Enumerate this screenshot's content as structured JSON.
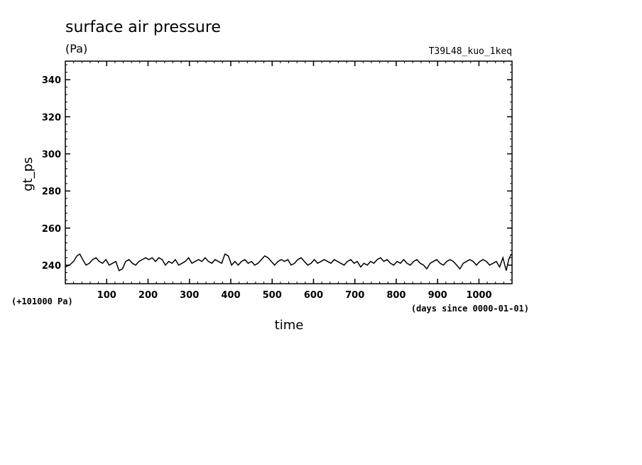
{
  "chart_data": {
    "type": "line",
    "title": "surface air pressure",
    "subtitle": "(Pa)",
    "run_id": "T39L48_kuo_1keq",
    "ylabel": "gt_ps",
    "xlabel": "time",
    "x_note": "(days since 0000-01-01)",
    "y_offset_note": "(+101000 Pa)",
    "xlim": [
      0,
      1080
    ],
    "ylim": [
      230,
      350
    ],
    "x_ticks": [
      100,
      200,
      300,
      400,
      500,
      600,
      700,
      800,
      900,
      1000
    ],
    "y_ticks": [
      240,
      260,
      280,
      300,
      320,
      340
    ],
    "grid": false,
    "series": [
      {
        "x": [
          0,
          10,
          20,
          28,
          35,
          42,
          50,
          58,
          66,
          74,
          82,
          90,
          98,
          106,
          114,
          122,
          130,
          138,
          146,
          154,
          162,
          170,
          178,
          186,
          194,
          202,
          210,
          218,
          226,
          234,
          242,
          250,
          258,
          266,
          274,
          282,
          290,
          298,
          306,
          314,
          322,
          330,
          338,
          346,
          354,
          362,
          370,
          378,
          386,
          394,
          402,
          410,
          418,
          426,
          434,
          442,
          450,
          458,
          466,
          474,
          482,
          490,
          498,
          506,
          514,
          522,
          530,
          538,
          546,
          554,
          562,
          570,
          578,
          586,
          594,
          602,
          610,
          618,
          626,
          634,
          642,
          650,
          658,
          666,
          674,
          682,
          690,
          698,
          706,
          714,
          722,
          730,
          738,
          746,
          754,
          762,
          770,
          778,
          786,
          794,
          802,
          810,
          818,
          826,
          834,
          842,
          850,
          858,
          866,
          874,
          882,
          890,
          898,
          906,
          914,
          922,
          930,
          938,
          946,
          954,
          962,
          970,
          978,
          986,
          994,
          1002,
          1010,
          1018,
          1026,
          1034,
          1042,
          1050,
          1058,
          1066,
          1072,
          1078
        ],
        "y": [
          239,
          240,
          242,
          245,
          246,
          243,
          240,
          241,
          243,
          244,
          242,
          241,
          243,
          240,
          241,
          242,
          237,
          238,
          242,
          243,
          241,
          240,
          242,
          243,
          244,
          243,
          244,
          242,
          244,
          243,
          240,
          242,
          241,
          243,
          240,
          241,
          242,
          244,
          241,
          242,
          243,
          242,
          244,
          242,
          241,
          243,
          242,
          241,
          246,
          245,
          240,
          242,
          240,
          242,
          243,
          241,
          242,
          240,
          241,
          243,
          245,
          244,
          242,
          240,
          242,
          243,
          242,
          243,
          240,
          241,
          243,
          244,
          242,
          240,
          241,
          243,
          241,
          242,
          243,
          242,
          241,
          243,
          242,
          241,
          240,
          242,
          243,
          241,
          242,
          239,
          241,
          240,
          242,
          241,
          243,
          244,
          242,
          243,
          241,
          240,
          242,
          241,
          243,
          241,
          240,
          242,
          243,
          241,
          240,
          238,
          241,
          242,
          243,
          241,
          240,
          242,
          243,
          242,
          240,
          238,
          241,
          242,
          243,
          242,
          240,
          242,
          243,
          242,
          240,
          241,
          242,
          239,
          244,
          237,
          243,
          246
        ]
      }
    ]
  }
}
